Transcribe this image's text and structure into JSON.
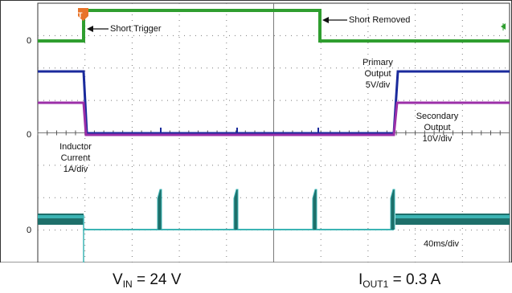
{
  "scope": {
    "zero_markers": [
      "0",
      "0",
      "0"
    ],
    "trigger_marker": "T",
    "annotations": {
      "short_trigger": "Short Trigger",
      "short_removed": "Short Removed",
      "primary_output": [
        "Primary",
        "Output",
        "5V/div"
      ],
      "secondary_output": [
        "Secondary",
        "Output",
        "10V/div"
      ],
      "inductor_current": [
        "Inductor",
        "Current",
        "1A/div"
      ],
      "timebase": "40ms/div"
    },
    "colors": {
      "ch1": "#2f9e2f",
      "ch2": "#1a2a9c",
      "ch3": "#9b2fa8",
      "ch4": "#3cb4b4",
      "ch4_dark": "#1e6f6a",
      "grid": "#7a7a7a",
      "trigger": "#e8742a"
    }
  },
  "captions": {
    "vin_main": "V",
    "vin_sub": "IN",
    "vin_value": " = 24 V",
    "iout_main": "I",
    "iout_sub": "OUT1",
    "iout_value": " = 0.3 A"
  }
}
